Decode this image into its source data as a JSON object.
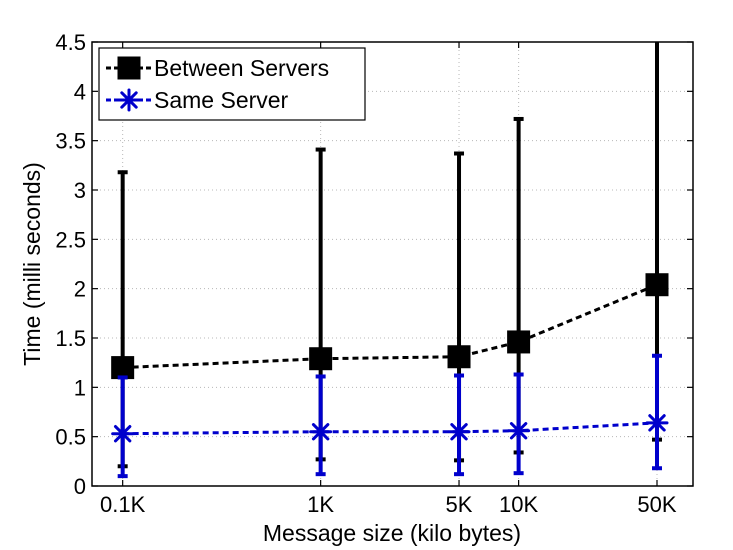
{
  "chart_data": {
    "type": "line",
    "title": "",
    "xlabel": "Message size (kilo bytes)",
    "ylabel": "Time (milli seconds)",
    "x_scale": "log",
    "xlim": [
      0.07,
      76
    ],
    "ylim": [
      0,
      4.5
    ],
    "grid": true,
    "legend": "top-left",
    "x_tick_values": [
      0.1,
      1,
      5,
      10,
      50
    ],
    "x_tick_labels": [
      "0.1K",
      "1K",
      "5K",
      "10K",
      "50K"
    ],
    "y_ticks": [
      0,
      0.5,
      1,
      1.5,
      2,
      2.5,
      3,
      3.5,
      4,
      4.5
    ],
    "y_tick_labels": [
      "0",
      "0.5",
      "1",
      "1.5",
      "2",
      "2.5",
      "3",
      "3.5",
      "4",
      "4.5"
    ],
    "series": [
      {
        "name": "Between Servers",
        "color": "#000000",
        "marker": "square",
        "x": [
          0.1,
          1,
          5,
          10,
          50
        ],
        "y": [
          1.2,
          1.29,
          1.31,
          1.46,
          2.04
        ],
        "err_low": [
          0.2,
          0.27,
          0.26,
          0.34,
          0.47
        ],
        "err_high": [
          3.18,
          3.41,
          3.37,
          3.72,
          4.5
        ]
      },
      {
        "name": "Same Server",
        "color": "#0000cc",
        "marker": "asterisk",
        "x": [
          0.1,
          1,
          5,
          10,
          50
        ],
        "y": [
          0.53,
          0.55,
          0.55,
          0.56,
          0.64
        ],
        "err_low": [
          0.1,
          0.12,
          0.12,
          0.13,
          0.18
        ],
        "err_high": [
          1.1,
          1.11,
          1.12,
          1.13,
          1.32
        ]
      }
    ]
  }
}
